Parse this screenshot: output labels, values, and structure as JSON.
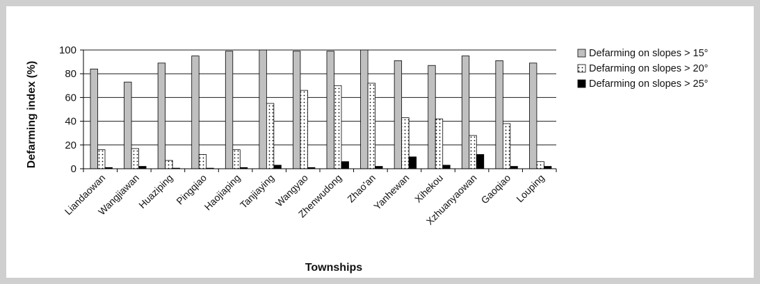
{
  "chart_data": {
    "type": "bar",
    "ylabel": "Defarming index (%)",
    "xlabel": "Townships",
    "ylim": [
      0,
      100
    ],
    "yticks": [
      "0",
      "20",
      "40",
      "60",
      "80",
      "100"
    ],
    "legend_position": "right",
    "categories": [
      "Liandaowan",
      "Wangjiawan",
      "Huaziping",
      "Pingqiao",
      "Haojiaping",
      "Tanjiaying",
      "Wangyao",
      "Zhenwudong",
      "Zhao'an",
      "Yanhewan",
      "Xihekou",
      "Xzhuanyaowan",
      "Gaoqiao",
      "Louping"
    ],
    "series": [
      {
        "name": "Defarming on slopes > 15°",
        "fill": "#c0c0c0",
        "pattern": "solid",
        "values": [
          84,
          73,
          89,
          95,
          99,
          100,
          99,
          99,
          100,
          91,
          87,
          95,
          91,
          89
        ]
      },
      {
        "name": "Defarming on slopes > 20°",
        "fill": "#ffffff",
        "pattern": "dots",
        "values": [
          16,
          17,
          7,
          12,
          16,
          55,
          66,
          70,
          72,
          43,
          42,
          28,
          38,
          6
        ]
      },
      {
        "name": "Defarming on slopes > 25°",
        "fill": "#000000",
        "pattern": "solid",
        "values": [
          1,
          2,
          0.5,
          0.5,
          1,
          3,
          1,
          6,
          2,
          10,
          3,
          12,
          2,
          2
        ]
      }
    ]
  }
}
